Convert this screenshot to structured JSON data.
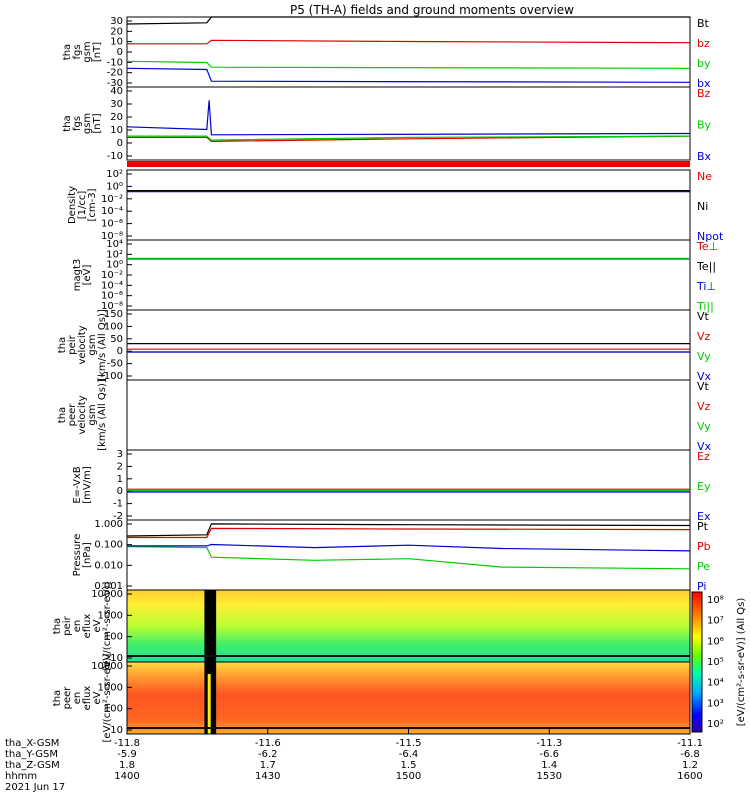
{
  "chart_data": {
    "type": "line",
    "title": "P5 (TH-A) fields and ground moments overview",
    "date": "2021 Jun 17",
    "x_ticks": {
      "tha_X-GSM": [
        "-11.8",
        "-11.6",
        "-11.5",
        "-11.3",
        "-11.1"
      ],
      "tha_Y-GSM": [
        "-5.9",
        "-6.2",
        "-6.4",
        "-6.6",
        "-6.8"
      ],
      "tha_Z-GSM": [
        "1.8",
        "1.7",
        "1.5",
        "1.4",
        "1.2"
      ],
      "hhmm": [
        "1400",
        "1430",
        "1500",
        "1530",
        "1600"
      ]
    },
    "x_row_labels": [
      "tha_X-GSM",
      "tha_Y-GSM",
      "tha_Z-GSM",
      "hhmm"
    ],
    "x_range_minutes": [
      0,
      120
    ],
    "panels": [
      {
        "id": "fgs",
        "ylabel": [
          "tha",
          "fgs",
          "gsm",
          "[nT]"
        ],
        "ylim": [
          -30,
          30
        ],
        "yticks": [
          "30",
          "20",
          "10",
          "0",
          "-10",
          "-20",
          "-30"
        ],
        "series": [
          {
            "name": "Bt",
            "color": "#000000",
            "points": [
              [
                0,
                24
              ],
              [
                17,
                25
              ],
              [
                18,
                30
              ],
              [
                120,
                30
              ]
            ]
          },
          {
            "name": "bz",
            "color": "#dd0000",
            "points": [
              [
                0,
                7
              ],
              [
                17,
                7
              ],
              [
                18,
                10
              ],
              [
                60,
                9
              ],
              [
                120,
                8
              ]
            ]
          },
          {
            "name": "by",
            "color": "#00cc00",
            "points": [
              [
                0,
                -8
              ],
              [
                17,
                -9
              ],
              [
                18,
                -13
              ],
              [
                120,
                -14
              ]
            ]
          },
          {
            "name": "bx",
            "color": "#0000dd",
            "points": [
              [
                0,
                -14
              ],
              [
                17,
                -15
              ],
              [
                18,
                -25
              ],
              [
                120,
                -26
              ]
            ]
          }
        ]
      },
      {
        "id": "fgs_dsl",
        "ylabel": [
          "tha",
          "fgs",
          "gsm",
          "[nT]"
        ],
        "ylim": [
          -15,
          40
        ],
        "yticks": [
          "40",
          "30",
          "20",
          "10",
          "0",
          "-10"
        ],
        "series": [
          {
            "name": "Bz",
            "color": "#dd0000",
            "points": [
              [
                0,
                2
              ],
              [
                17,
                2
              ],
              [
                18,
                -1
              ],
              [
                60,
                1
              ],
              [
                120,
                3
              ]
            ]
          },
          {
            "name": "By",
            "color": "#00cc00",
            "points": [
              [
                0,
                3
              ],
              [
                17,
                3
              ],
              [
                18,
                0
              ],
              [
                60,
                2
              ],
              [
                120,
                3
              ]
            ]
          },
          {
            "name": "Bx",
            "color": "#0000dd",
            "points": [
              [
                0,
                10
              ],
              [
                17,
                8
              ],
              [
                17.5,
                30
              ],
              [
                18,
                4
              ],
              [
                120,
                5
              ]
            ]
          }
        ]
      },
      {
        "id": "density",
        "ylabel": [
          "Density",
          "[1/cc]",
          "[cm-3]"
        ],
        "ylim_log": [
          -9,
          3
        ],
        "yticks": [
          "10²",
          "10⁰",
          "10⁻²",
          "10⁻⁴",
          "10⁻⁶",
          "10⁻⁸"
        ],
        "series": [
          {
            "name": "Ne",
            "color": "#dd0000",
            "points": [
              [
                0,
                0.3
              ],
              [
                120,
                0.3
              ]
            ]
          },
          {
            "name": "Ni",
            "color": "#000000",
            "points": [
              [
                0,
                0.3
              ],
              [
                120,
                0.3
              ]
            ]
          },
          {
            "name": "Npot",
            "color": "#0000dd",
            "points": [
              [
                0,
                0.2
              ],
              [
                120,
                0.2
              ]
            ]
          }
        ]
      },
      {
        "id": "temperature",
        "ylabel": [
          "magt3",
          "[eV]"
        ],
        "ylim_log": [
          -9,
          4
        ],
        "yticks": [
          "10⁴",
          "10²",
          "10⁰",
          "10⁻²",
          "10⁻⁴",
          "10⁻⁶",
          "10⁻⁸"
        ],
        "series": [
          {
            "name": "Te⊥",
            "color": "#dd0000",
            "points": [
              [
                0,
                3
              ],
              [
                120,
                3
              ]
            ]
          },
          {
            "name": "Te||",
            "color": "#000000",
            "points": [
              [
                0,
                3.3
              ],
              [
                120,
                3.3
              ]
            ]
          },
          {
            "name": "Ti⊥",
            "color": "#0000dd",
            "points": [
              [
                0,
                3.6
              ],
              [
                120,
                3.6
              ]
            ]
          },
          {
            "name": "Ti||",
            "color": "#00cc00",
            "points": [
              [
                0,
                3.4
              ],
              [
                120,
                3.4
              ]
            ]
          }
        ]
      },
      {
        "id": "peir_velocity",
        "ylabel": [
          "tha",
          "peir",
          "velocity",
          "gsm",
          "[km/s (All Qs)]"
        ],
        "ylim": [
          -100,
          150
        ],
        "yticks": [
          "150",
          "100",
          "50",
          "0",
          "-50",
          "-100"
        ],
        "series": [
          {
            "name": "Vt",
            "color": "#000000",
            "points": [
              [
                0,
                30
              ],
              [
                120,
                30
              ]
            ]
          },
          {
            "name": "Vz",
            "color": "#dd0000",
            "points": [
              [
                0,
                10
              ],
              [
                120,
                10
              ]
            ]
          },
          {
            "name": "Vy",
            "color": "#00cc00",
            "points": [
              [
                0,
                0
              ],
              [
                120,
                0
              ]
            ]
          },
          {
            "name": "Vx",
            "color": "#0000dd",
            "points": [
              [
                0,
                0
              ],
              [
                120,
                0
              ]
            ]
          }
        ]
      },
      {
        "id": "peer_velocity",
        "ylabel": [
          "tha",
          "peer",
          "velocity",
          "gsm",
          "[km/s (All Qs)]"
        ],
        "ylim": [
          -100,
          150
        ],
        "yticks": [],
        "series": [
          {
            "name": "Vt",
            "color": "#000000",
            "points": []
          },
          {
            "name": "Vz",
            "color": "#dd0000",
            "points": []
          },
          {
            "name": "Vy",
            "color": "#00cc00",
            "points": []
          },
          {
            "name": "Vx",
            "color": "#0000dd",
            "points": []
          }
        ]
      },
      {
        "id": "efield",
        "ylabel": [
          "E=-VxB",
          "[mV/m]"
        ],
        "ylim": [
          -2,
          3
        ],
        "yticks": [
          "3",
          "2",
          "1",
          "0",
          "-1",
          "-2"
        ],
        "series": [
          {
            "name": "Ez",
            "color": "#dd0000",
            "points": [
              [
                0,
                0.2
              ],
              [
                120,
                0.2
              ]
            ]
          },
          {
            "name": "Ey",
            "color": "#00cc00",
            "points": [
              [
                0,
                0.1
              ],
              [
                120,
                0.1
              ]
            ]
          },
          {
            "name": "Ex",
            "color": "#0000dd",
            "points": [
              [
                0,
                0
              ],
              [
                120,
                0
              ]
            ]
          }
        ]
      },
      {
        "id": "pressure",
        "ylabel": [
          "Pressure",
          "[nPa]"
        ],
        "ylim_log": [
          -3,
          0.3
        ],
        "yticks": [
          "1.000",
          "0.100",
          "0.010",
          "0.001"
        ],
        "series": [
          {
            "name": "Pt",
            "color": "#000000",
            "points": [
              [
                0,
                0.35
              ],
              [
                17,
                0.4
              ],
              [
                18,
                1.3
              ],
              [
                60,
                1.2
              ],
              [
                120,
                1.1
              ]
            ]
          },
          {
            "name": "Pb",
            "color": "#dd0000",
            "points": [
              [
                0,
                0.3
              ],
              [
                17,
                0.3
              ],
              [
                18,
                0.8
              ],
              [
                60,
                0.75
              ],
              [
                120,
                0.7
              ]
            ]
          },
          {
            "name": "Pe",
            "color": "#00cc00",
            "points": [
              [
                0,
                0.11
              ],
              [
                17,
                0.1
              ],
              [
                18,
                0.035
              ],
              [
                40,
                0.025
              ],
              [
                60,
                0.03
              ],
              [
                80,
                0.012
              ],
              [
                120,
                0.01
              ]
            ]
          },
          {
            "name": "Pi",
            "color": "#0000dd",
            "points": [
              [
                0,
                0.12
              ],
              [
                17,
                0.12
              ],
              [
                18,
                0.14
              ],
              [
                40,
                0.1
              ],
              [
                60,
                0.13
              ],
              [
                80,
                0.09
              ],
              [
                120,
                0.07
              ]
            ]
          }
        ]
      },
      {
        "id": "peir_spectrogram",
        "type": "heatmap",
        "ylabel": [
          "tha",
          "peir",
          "en",
          "eflux",
          "eV",
          "[eV/(cm²-s-sr-eV)]"
        ],
        "yticks": [
          "10000",
          "1000",
          "100",
          "10"
        ]
      },
      {
        "id": "peer_spectrogram",
        "type": "heatmap",
        "ylabel": [
          "tha",
          "peer",
          "en",
          "eflux",
          "eV",
          "[eV/(cm²-s-sr-eV)]"
        ],
        "yticks": [
          "10000",
          "1000",
          "100",
          "10"
        ]
      }
    ],
    "colorbar": {
      "label": "[eV/(cm²-s-sr-eV)] (All Qs)",
      "ticks": [
        "10⁸",
        "10⁷",
        "10⁶",
        "10⁵",
        "10⁴",
        "10³",
        "10²"
      ]
    }
  }
}
